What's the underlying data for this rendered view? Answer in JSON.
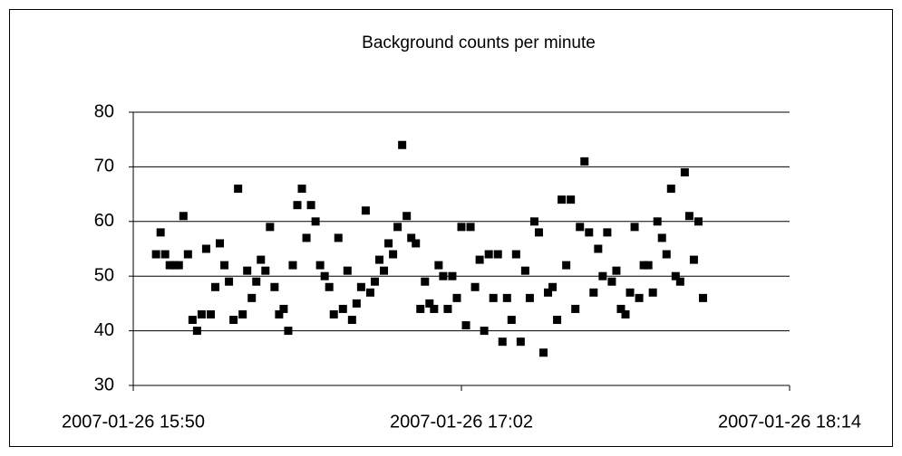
{
  "chart_data": {
    "type": "scatter",
    "title": "Background counts per minute",
    "x": [
      "2007-01-26 15:55",
      "2007-01-26 15:56",
      "2007-01-26 15:57",
      "2007-01-26 15:58",
      "2007-01-26 15:59",
      "2007-01-26 16:00",
      "2007-01-26 16:01",
      "2007-01-26 16:02",
      "2007-01-26 16:03",
      "2007-01-26 16:04",
      "2007-01-26 16:05",
      "2007-01-26 16:06",
      "2007-01-26 16:07",
      "2007-01-26 16:08",
      "2007-01-26 16:09",
      "2007-01-26 16:10",
      "2007-01-26 16:11",
      "2007-01-26 16:12",
      "2007-01-26 16:13",
      "2007-01-26 16:14",
      "2007-01-26 16:15",
      "2007-01-26 16:16",
      "2007-01-26 16:17",
      "2007-01-26 16:18",
      "2007-01-26 16:19",
      "2007-01-26 16:20",
      "2007-01-26 16:21",
      "2007-01-26 16:22",
      "2007-01-26 16:23",
      "2007-01-26 16:24",
      "2007-01-26 16:25",
      "2007-01-26 16:26",
      "2007-01-26 16:27",
      "2007-01-26 16:28",
      "2007-01-26 16:29",
      "2007-01-26 16:30",
      "2007-01-26 16:31",
      "2007-01-26 16:32",
      "2007-01-26 16:33",
      "2007-01-26 16:34",
      "2007-01-26 16:35",
      "2007-01-26 16:36",
      "2007-01-26 16:37",
      "2007-01-26 16:38",
      "2007-01-26 16:39",
      "2007-01-26 16:40",
      "2007-01-26 16:41",
      "2007-01-26 16:42",
      "2007-01-26 16:43",
      "2007-01-26 16:44",
      "2007-01-26 16:45",
      "2007-01-26 16:46",
      "2007-01-26 16:47",
      "2007-01-26 16:48",
      "2007-01-26 16:49",
      "2007-01-26 16:50",
      "2007-01-26 16:51",
      "2007-01-26 16:52",
      "2007-01-26 16:53",
      "2007-01-26 16:54",
      "2007-01-26 16:55",
      "2007-01-26 16:56",
      "2007-01-26 16:57",
      "2007-01-26 16:58",
      "2007-01-26 16:59",
      "2007-01-26 17:00",
      "2007-01-26 17:01",
      "2007-01-26 17:02",
      "2007-01-26 17:03",
      "2007-01-26 17:04",
      "2007-01-26 17:05",
      "2007-01-26 17:06",
      "2007-01-26 17:07",
      "2007-01-26 17:08",
      "2007-01-26 17:09",
      "2007-01-26 17:10",
      "2007-01-26 17:11",
      "2007-01-26 17:12",
      "2007-01-26 17:13",
      "2007-01-26 17:14",
      "2007-01-26 17:15",
      "2007-01-26 17:16",
      "2007-01-26 17:17",
      "2007-01-26 17:18",
      "2007-01-26 17:19",
      "2007-01-26 17:20",
      "2007-01-26 17:21",
      "2007-01-26 17:22",
      "2007-01-26 17:23",
      "2007-01-26 17:24",
      "2007-01-26 17:25",
      "2007-01-26 17:26",
      "2007-01-26 17:27",
      "2007-01-26 17:28",
      "2007-01-26 17:29",
      "2007-01-26 17:30",
      "2007-01-26 17:31",
      "2007-01-26 17:32",
      "2007-01-26 17:33",
      "2007-01-26 17:34",
      "2007-01-26 17:35",
      "2007-01-26 17:36",
      "2007-01-26 17:37",
      "2007-01-26 17:38",
      "2007-01-26 17:39",
      "2007-01-26 17:40",
      "2007-01-26 17:41",
      "2007-01-26 17:42",
      "2007-01-26 17:43",
      "2007-01-26 17:44",
      "2007-01-26 17:45",
      "2007-01-26 17:46",
      "2007-01-26 17:47",
      "2007-01-26 17:48",
      "2007-01-26 17:49",
      "2007-01-26 17:50",
      "2007-01-26 17:51",
      "2007-01-26 17:52",
      "2007-01-26 17:53",
      "2007-01-26 17:54",
      "2007-01-26 17:55"
    ],
    "values": [
      54,
      58,
      54,
      52,
      52,
      52,
      61,
      54,
      42,
      40,
      43,
      55,
      43,
      48,
      56,
      52,
      49,
      42,
      66,
      43,
      51,
      46,
      49,
      53,
      51,
      59,
      48,
      43,
      44,
      40,
      52,
      63,
      66,
      57,
      63,
      60,
      52,
      50,
      48,
      43,
      57,
      44,
      51,
      42,
      45,
      48,
      62,
      47,
      49,
      53,
      51,
      56,
      54,
      59,
      74,
      61,
      57,
      56,
      44,
      49,
      45,
      44,
      52,
      50,
      44,
      50,
      46,
      59,
      41,
      59,
      48,
      53,
      40,
      54,
      46,
      54,
      38,
      46,
      42,
      54,
      38,
      51,
      46,
      60,
      58,
      36,
      47,
      48,
      42,
      64,
      52,
      64,
      44,
      59,
      71,
      58,
      47,
      55,
      50,
      58,
      49,
      51,
      44,
      43,
      47,
      59,
      46,
      52,
      52,
      47,
      60,
      57,
      54,
      66,
      50,
      49,
      69,
      61,
      53,
      60,
      46
    ],
    "color": "#000000",
    "xlim": [
      "2007-01-26 15:50",
      "2007-01-26 18:14"
    ],
    "xticks": [
      "2007-01-26 15:50",
      "2007-01-26 17:02",
      "2007-01-26 18:14"
    ],
    "ylim": [
      30,
      80
    ],
    "yticks": [
      30,
      40,
      50,
      60,
      70,
      80
    ],
    "grid": true
  }
}
